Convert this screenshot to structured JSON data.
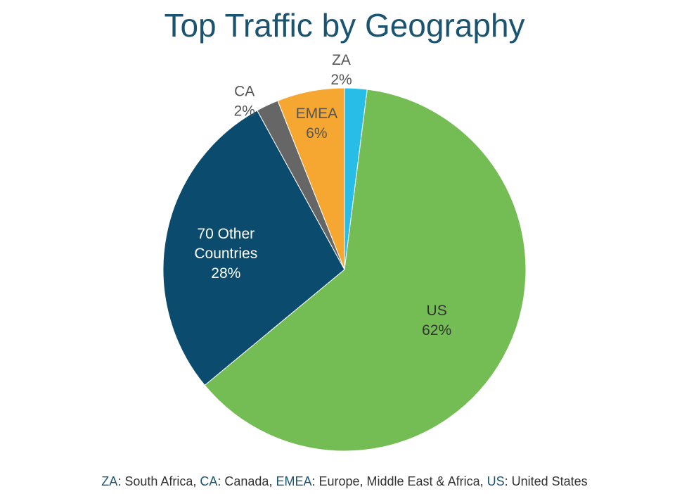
{
  "chart_data": {
    "type": "pie",
    "title": "Top Traffic by Geography",
    "start_angle_deg": 0,
    "direction": "clockwise",
    "slices": [
      {
        "label": "ZA",
        "value": 2,
        "value_label": "2%",
        "color": "#27bde6",
        "text_color": "#555555",
        "label_lines": [
          "ZA"
        ]
      },
      {
        "label": "US",
        "value": 62,
        "value_label": "62%",
        "color": "#74bd55",
        "text_color": "#333333",
        "label_lines": [
          "US"
        ]
      },
      {
        "label": "70 Other Countries",
        "value": 28,
        "value_label": "28%",
        "color": "#0b4c6e",
        "text_color": "#ffffff",
        "label_lines": [
          "70 Other",
          "Countries"
        ]
      },
      {
        "label": "CA",
        "value": 2,
        "value_label": "2%",
        "color": "#666666",
        "text_color": "#555555",
        "label_lines": [
          "CA"
        ]
      },
      {
        "label": "EMEA",
        "value": 6,
        "value_label": "6%",
        "color": "#f6a731",
        "text_color": "#555555",
        "label_lines": [
          "EMEA"
        ]
      }
    ]
  },
  "colors": {
    "title": "#1b5470",
    "footnote_abbr": "#1b5470",
    "footnote_text": "#333333"
  },
  "footnote": {
    "items": [
      {
        "abbr": "ZA",
        "text": ": South Africa, "
      },
      {
        "abbr": "CA",
        "text": ": Canada, "
      },
      {
        "abbr": "EMEA",
        "text": ": Europe, Middle East & Africa, "
      },
      {
        "abbr": "US",
        "text": ": United States"
      }
    ]
  }
}
